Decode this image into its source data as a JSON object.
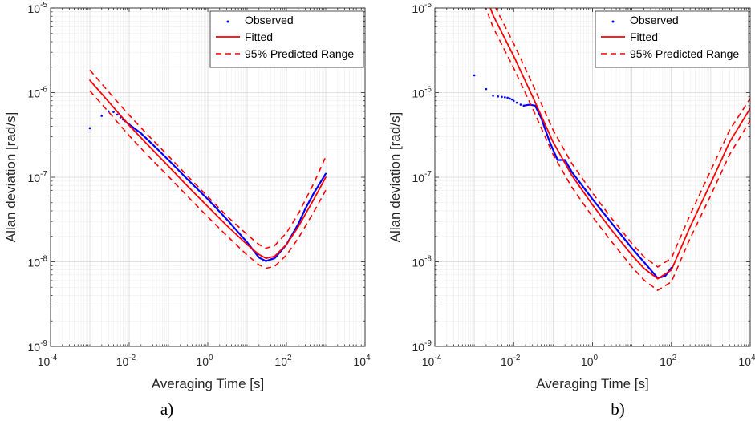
{
  "figure": {
    "panel_labels": [
      "a)",
      "b)"
    ]
  },
  "colors": {
    "observed": "#0000ff",
    "fitted": "#ff0000",
    "axis": "#262626",
    "grid_major": "#d9d9d9",
    "grid_minor": "#eeeeee"
  },
  "chart_data": [
    {
      "type": "line",
      "panel": "a)",
      "xscale": "log",
      "yscale": "log",
      "xlim": [
        0.0001,
        10000
      ],
      "ylim": [
        1e-09,
        1e-05
      ],
      "xlabel": "Averaging Time [s]",
      "ylabel": "Allan deviation [rad/s]",
      "xtick_labels": [
        {
          "base": "10",
          "exp": "-4"
        },
        {
          "base": "10",
          "exp": "-2"
        },
        {
          "base": "10",
          "exp": "0"
        },
        {
          "base": "10",
          "exp": "2"
        },
        {
          "base": "10",
          "exp": "4"
        }
      ],
      "ytick_labels": [
        {
          "base": "10",
          "exp": "-9"
        },
        {
          "base": "10",
          "exp": "-8"
        },
        {
          "base": "10",
          "exp": "-7"
        },
        {
          "base": "10",
          "exp": "-6"
        },
        {
          "base": "10",
          "exp": "-5"
        }
      ],
      "legend": {
        "position": "top-right",
        "entries": [
          "Observed",
          "Fitted",
          "95% Predicted Range"
        ]
      },
      "grid": true,
      "series": [
        {
          "name": "Observed",
          "style": "dots",
          "points": [
            [
              0.001,
              3.8e-07
            ],
            [
              0.002,
              5.3e-07
            ],
            [
              0.003,
              6e-07
            ],
            [
              0.004,
              5.9e-07
            ],
            [
              0.005,
              5.5e-07
            ],
            [
              0.006,
              5.1e-07
            ],
            [
              0.007,
              4.8e-07
            ],
            [
              0.008,
              4.6e-07
            ],
            [
              0.009,
              4.4e-07
            ],
            [
              0.01,
              4.2e-07
            ]
          ]
        },
        {
          "name": "Observed",
          "style": "line",
          "points": [
            [
              0.01,
              4.2e-07
            ],
            [
              0.02,
              3.3e-07
            ],
            [
              0.05,
              2.2e-07
            ],
            [
              0.1,
              1.6e-07
            ],
            [
              0.3,
              9.5e-08
            ],
            [
              1,
              5.5e-08
            ],
            [
              3,
              3.2e-08
            ],
            [
              10,
              1.7e-08
            ],
            [
              20,
              1.12e-08
            ],
            [
              30,
              1.02e-08
            ],
            [
              50,
              1.1e-08
            ],
            [
              100,
              1.6e-08
            ],
            [
              200,
              2.8e-08
            ],
            [
              300,
              4.2e-08
            ],
            [
              500,
              6.5e-08
            ],
            [
              1000,
              1.1e-07
            ]
          ]
        },
        {
          "name": "Fitted",
          "style": "solid",
          "points": [
            [
              0.001,
              1.4e-06
            ],
            [
              0.003,
              7.8e-07
            ],
            [
              0.01,
              4.1e-07
            ],
            [
              0.03,
              2.4e-07
            ],
            [
              0.1,
              1.35e-07
            ],
            [
              0.3,
              7.9e-08
            ],
            [
              1,
              4.5e-08
            ],
            [
              3,
              2.7e-08
            ],
            [
              10,
              1.6e-08
            ],
            [
              20,
              1.22e-08
            ],
            [
              30,
              1.1e-08
            ],
            [
              50,
              1.16e-08
            ],
            [
              100,
              1.6e-08
            ],
            [
              200,
              2.6e-08
            ],
            [
              500,
              5.5e-08
            ],
            [
              1000,
              1e-07
            ]
          ]
        },
        {
          "name": "95% Predicted Range",
          "style": "dashed",
          "points": [
            [
              0.001,
              1.85e-06
            ],
            [
              0.003,
              1.02e-06
            ],
            [
              0.01,
              5.4e-07
            ],
            [
              0.03,
              3.15e-07
            ],
            [
              0.1,
              1.78e-07
            ],
            [
              0.3,
              1.04e-07
            ],
            [
              1,
              5.9e-08
            ],
            [
              3,
              3.5e-08
            ],
            [
              10,
              2.1e-08
            ],
            [
              20,
              1.6e-08
            ],
            [
              30,
              1.45e-08
            ],
            [
              50,
              1.55e-08
            ],
            [
              100,
              2.2e-08
            ],
            [
              200,
              3.7e-08
            ],
            [
              500,
              8.5e-08
            ],
            [
              1000,
              1.75e-07
            ]
          ]
        },
        {
          "name": "95% Predicted Range",
          "style": "dashed",
          "points": [
            [
              0.001,
              1.05e-06
            ],
            [
              0.003,
              5.9e-07
            ],
            [
              0.01,
              3.1e-07
            ],
            [
              0.03,
              1.8e-07
            ],
            [
              0.1,
              1.02e-07
            ],
            [
              0.3,
              6e-08
            ],
            [
              1,
              3.4e-08
            ],
            [
              3,
              2.05e-08
            ],
            [
              10,
              1.2e-08
            ],
            [
              20,
              9.2e-09
            ],
            [
              30,
              8.4e-09
            ],
            [
              50,
              8.8e-09
            ],
            [
              100,
              1.2e-08
            ],
            [
              200,
              1.9e-08
            ],
            [
              500,
              3.9e-08
            ],
            [
              1000,
              7e-08
            ]
          ]
        }
      ]
    },
    {
      "type": "line",
      "panel": "b)",
      "xscale": "log",
      "yscale": "log",
      "xlim": [
        0.0001,
        10000
      ],
      "ylim": [
        1e-09,
        1e-05
      ],
      "xlabel": "Averaging Time [s]",
      "ylabel": "Allan deviation [rad/s]",
      "xtick_labels": [
        {
          "base": "10",
          "exp": "-4"
        },
        {
          "base": "10",
          "exp": "-2"
        },
        {
          "base": "10",
          "exp": "0"
        },
        {
          "base": "10",
          "exp": "2"
        },
        {
          "base": "10",
          "exp": "4"
        }
      ],
      "ytick_labels": [
        {
          "base": "10",
          "exp": "-9"
        },
        {
          "base": "10",
          "exp": "-8"
        },
        {
          "base": "10",
          "exp": "-7"
        },
        {
          "base": "10",
          "exp": "-6"
        },
        {
          "base": "10",
          "exp": "-5"
        }
      ],
      "legend": {
        "position": "top-right",
        "entries": [
          "Observed",
          "Fitted",
          "95% Predicted Range"
        ]
      },
      "grid": true,
      "series": [
        {
          "name": "Observed",
          "style": "dots",
          "points": [
            [
              0.001,
              1.6e-06
            ],
            [
              0.002,
              1.1e-06
            ],
            [
              0.003,
              9.2e-07
            ],
            [
              0.004,
              9e-07
            ],
            [
              0.005,
              8.9e-07
            ],
            [
              0.006,
              8.8e-07
            ],
            [
              0.007,
              8.7e-07
            ],
            [
              0.008,
              8.5e-07
            ],
            [
              0.009,
              8.3e-07
            ],
            [
              0.01,
              8e-07
            ],
            [
              0.012,
              7.6e-07
            ],
            [
              0.015,
              7.2e-07
            ],
            [
              0.018,
              7e-07
            ]
          ]
        },
        {
          "name": "Observed",
          "style": "line",
          "points": [
            [
              0.018,
              7e-07
            ],
            [
              0.025,
              7.2e-07
            ],
            [
              0.035,
              7e-07
            ],
            [
              0.05,
              5e-07
            ],
            [
              0.08,
              2.7e-07
            ],
            [
              0.1,
              2.1e-07
            ],
            [
              0.13,
              1.6e-07
            ],
            [
              0.2,
              1.6e-07
            ],
            [
              0.3,
              1.15e-07
            ],
            [
              1,
              5.5e-08
            ],
            [
              3,
              2.9e-08
            ],
            [
              10,
              1.45e-08
            ],
            [
              30,
              8e-09
            ],
            [
              45,
              6.4e-09
            ],
            [
              70,
              6.8e-09
            ],
            [
              100,
              8.5e-09
            ]
          ]
        },
        {
          "name": "Fitted",
          "style": "solid",
          "points": [
            [
              0.001,
              3.2e-05
            ],
            [
              0.003,
              8.2e-06
            ],
            [
              0.01,
              2.7e-06
            ],
            [
              0.03,
              9e-07
            ],
            [
              0.1,
              2.6e-07
            ],
            [
              0.3,
              1.05e-07
            ],
            [
              1,
              4.7e-08
            ],
            [
              3,
              2.4e-08
            ],
            [
              10,
              1.2e-08
            ],
            [
              20,
              8.4e-09
            ],
            [
              45,
              6.3e-09
            ],
            [
              100,
              8e-09
            ],
            [
              300,
              2.6e-08
            ],
            [
              1000,
              8.5e-08
            ],
            [
              3000,
              2.6e-07
            ],
            [
              10000,
              6.5e-07
            ]
          ]
        },
        {
          "name": "95% Predicted Range",
          "style": "dashed",
          "points": [
            [
              0.001,
              4.5e-05
            ],
            [
              0.003,
              1.15e-05
            ],
            [
              0.01,
              3.8e-06
            ],
            [
              0.03,
              1.26e-06
            ],
            [
              0.1,
              3.6e-07
            ],
            [
              0.3,
              1.45e-07
            ],
            [
              1,
              6.5e-08
            ],
            [
              3,
              3.3e-08
            ],
            [
              10,
              1.65e-08
            ],
            [
              20,
              1.15e-08
            ],
            [
              45,
              8.7e-09
            ],
            [
              100,
              1.1e-08
            ],
            [
              300,
              3.6e-08
            ],
            [
              1000,
              1.2e-07
            ],
            [
              3000,
              3.6e-07
            ],
            [
              10000,
              8.5e-07
            ]
          ]
        },
        {
          "name": "95% Predicted Range",
          "style": "dashed",
          "points": [
            [
              0.001,
              2.3e-05
            ],
            [
              0.003,
              5.9e-06
            ],
            [
              0.01,
              1.95e-06
            ],
            [
              0.03,
              6.5e-07
            ],
            [
              0.1,
              1.85e-07
            ],
            [
              0.3,
              7.6e-08
            ],
            [
              1,
              3.4e-08
            ],
            [
              3,
              1.75e-08
            ],
            [
              10,
              8.7e-09
            ],
            [
              20,
              6.1e-09
            ],
            [
              45,
              4.6e-09
            ],
            [
              100,
              5.8e-09
            ],
            [
              300,
              1.9e-08
            ],
            [
              1000,
              6.1e-08
            ],
            [
              3000,
              1.85e-07
            ],
            [
              10000,
              4.7e-07
            ]
          ]
        }
      ]
    }
  ]
}
